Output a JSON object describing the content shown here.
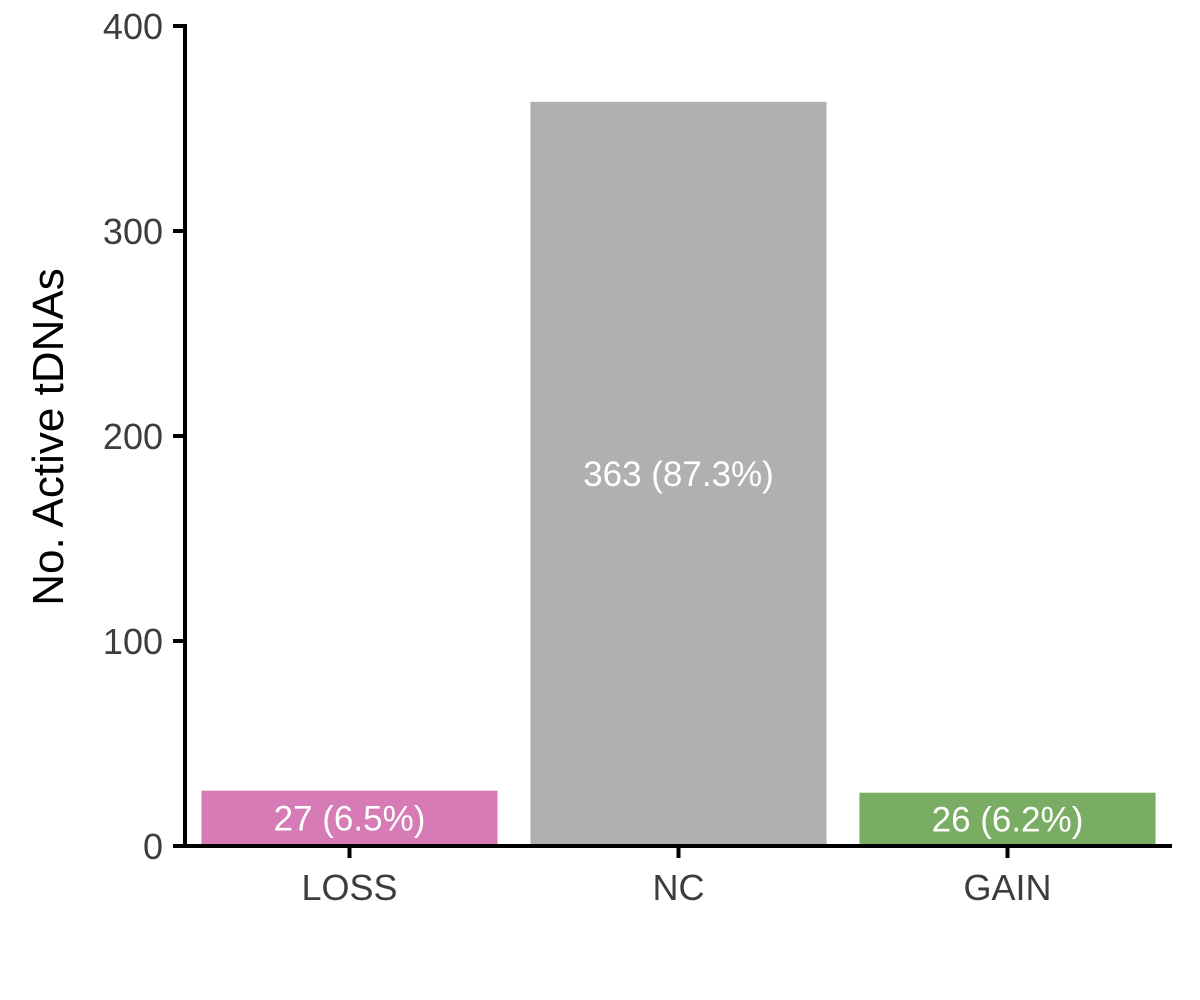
{
  "chart_data": {
    "type": "bar",
    "title": "",
    "xlabel": "",
    "ylabel": "No. Active tDNAs",
    "categories": [
      "LOSS",
      "NC",
      "GAIN"
    ],
    "values": [
      27,
      363,
      26
    ],
    "data_labels": [
      "27 (6.5%)",
      "363 (87.3%)",
      "26 (6.2%)"
    ],
    "colors": [
      "#d77bb6",
      "#b0b0b0",
      "#79ad63"
    ],
    "ylim": [
      0,
      400
    ],
    "yticks": [
      0,
      100,
      200,
      300,
      400
    ],
    "grid": false,
    "legend": "none"
  }
}
